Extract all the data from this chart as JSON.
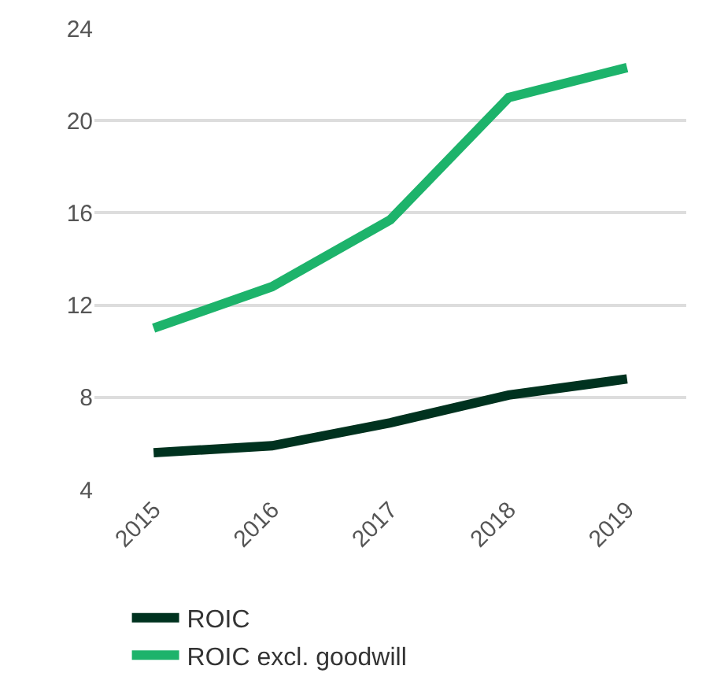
{
  "chart_data": {
    "type": "line",
    "categories": [
      "2015",
      "2016",
      "2017",
      "2018",
      "2019"
    ],
    "series": [
      {
        "name": "ROIC",
        "color": "#00321f",
        "values": [
          5.6,
          5.9,
          6.9,
          8.1,
          8.8
        ]
      },
      {
        "name": "ROIC excl. goodwill",
        "color": "#1db36b",
        "values": [
          11.0,
          12.8,
          15.7,
          21.0,
          22.3
        ]
      }
    ],
    "ylim": [
      4,
      24
    ],
    "yticks": [
      4,
      8,
      12,
      16,
      20,
      24
    ],
    "grid": "y",
    "legend": "bottom",
    "line_style": "solid",
    "marker": "none"
  }
}
